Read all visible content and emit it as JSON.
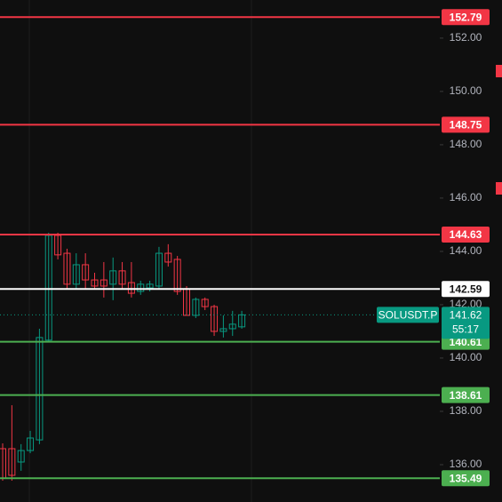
{
  "chart_data": {
    "type": "candlestick",
    "symbol": "SOLUSDT.P",
    "countdown": "55:17",
    "last_price": 141.62,
    "last_color": "#089981",
    "up_color": "#089981",
    "down_color": "#f23645",
    "ylim": [
      134.6,
      153.43
    ],
    "yticks": [
      {
        "value": 136,
        "label": "136.00"
      },
      {
        "value": 138,
        "label": "138.00"
      },
      {
        "value": 140,
        "label": "140.00"
      },
      {
        "value": 142,
        "label": "142.00"
      },
      {
        "value": 144,
        "label": "144.00"
      },
      {
        "value": 146,
        "label": "146.00"
      },
      {
        "value": 148,
        "label": "148.00"
      },
      {
        "value": 150,
        "label": "150.00"
      },
      {
        "value": 152,
        "label": "152.00"
      }
    ],
    "price_lines": [
      {
        "value": 152.79,
        "color": "#f23645"
      },
      {
        "value": 148.75,
        "color": "#f23645"
      },
      {
        "value": 144.63,
        "color": "#f23645"
      },
      {
        "value": 142.59,
        "color": "#ffffff"
      },
      {
        "value": 140.61,
        "color": "#4caf50"
      },
      {
        "value": 138.61,
        "color": "#4caf50"
      },
      {
        "value": 135.49,
        "color": "#4caf50"
      }
    ],
    "series": {
      "open": [
        136.6,
        136.6,
        136.1,
        136.53,
        136.93,
        140.67,
        144.6,
        143.93,
        142.77,
        143.5,
        142.93,
        142.93,
        142.77,
        143.27,
        142.83,
        142.5,
        142.63,
        142.7,
        143.93,
        143.7,
        142.6,
        141.6,
        142.2,
        141.93,
        141.0,
        141.1,
        141.17
      ],
      "high": [
        136.8,
        138.23,
        136.77,
        137.27,
        141.1,
        144.7,
        144.7,
        144.1,
        143.93,
        143.93,
        143.2,
        143.6,
        143.77,
        143.6,
        143.6,
        142.9,
        142.9,
        144.17,
        144.27,
        143.83,
        142.7,
        142.27,
        142.27,
        142.0,
        141.6,
        141.77,
        141.77
      ],
      "low": [
        135.4,
        135.4,
        135.77,
        136.43,
        136.77,
        140.6,
        143.7,
        142.6,
        142.6,
        142.6,
        142.6,
        142.27,
        142.17,
        142.6,
        142.27,
        142.37,
        142.5,
        142.6,
        143.43,
        142.37,
        141.6,
        141.5,
        141.8,
        140.83,
        140.77,
        140.83,
        141.1
      ],
      "close": [
        135.5,
        135.6,
        136.53,
        137.0,
        140.77,
        144.6,
        143.87,
        142.77,
        143.5,
        142.93,
        142.7,
        142.7,
        143.27,
        142.77,
        142.43,
        142.77,
        142.77,
        143.93,
        143.6,
        142.5,
        141.6,
        142.2,
        141.93,
        141.0,
        141.1,
        141.27,
        141.62
      ]
    }
  }
}
